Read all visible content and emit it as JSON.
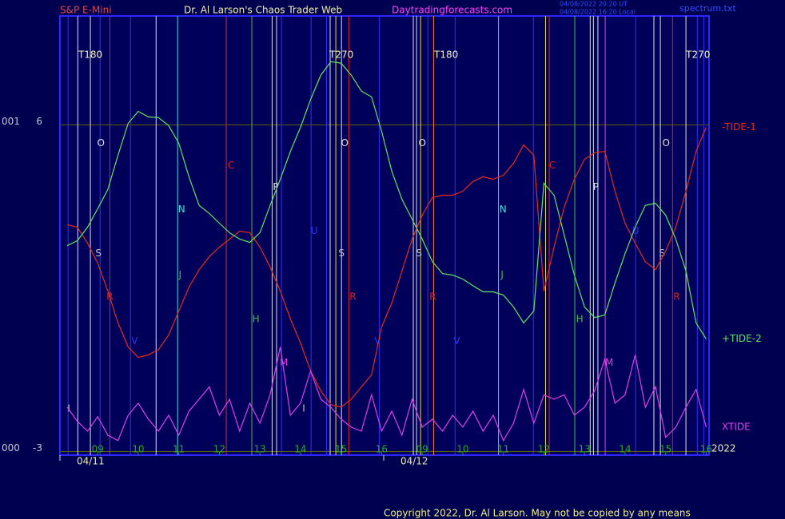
{
  "chart_data": {
    "type": "line",
    "instrument": "S&P E-Mini",
    "title": "Dr. Al Larson's Chaos Trader Web",
    "website": "Daytradingforecasts.com",
    "stamps": [
      "04/08/2022 20:20 UT",
      "04/08/2022 16:20 Local"
    ],
    "file": "spectrum.txt",
    "copyright": "Copyright 2022, Dr. Al Larson. May not be copied by any means",
    "year": "2022",
    "xlim": [
      -0.93,
      15.07
    ],
    "ylim": [
      -3.1,
      9.0
    ],
    "yticks": [
      -3,
      6
    ],
    "ytick_codes": [
      "000",
      "001"
    ],
    "grid": true,
    "xticks": [
      {
        "value": 0,
        "label": "09"
      },
      {
        "value": 1,
        "label": "10"
      },
      {
        "value": 2,
        "label": "11"
      },
      {
        "value": 3,
        "label": "12"
      },
      {
        "value": 4,
        "label": "13"
      },
      {
        "value": 5,
        "label": "14"
      },
      {
        "value": 6,
        "label": "15"
      },
      {
        "value": 7,
        "label": "16"
      },
      {
        "value": 8,
        "label": "09"
      },
      {
        "value": 9,
        "label": "10"
      },
      {
        "value": 10,
        "label": "11"
      },
      {
        "value": 11,
        "label": "12"
      },
      {
        "value": 12,
        "label": "13"
      },
      {
        "value": 13,
        "label": "14"
      },
      {
        "value": 14,
        "label": "15"
      },
      {
        "value": 15,
        "label": "16"
      }
    ],
    "dates": [
      {
        "text": "04/11",
        "x": -0.93
      },
      {
        "text": "04/12",
        "x": 7.05
      }
    ],
    "x": [
      -0.75,
      -0.5,
      -0.25,
      0,
      0.25,
      0.5,
      0.75,
      1,
      1.25,
      1.5,
      1.75,
      2,
      2.25,
      2.5,
      2.75,
      3,
      3.25,
      3.5,
      3.75,
      4,
      4.25,
      4.5,
      4.75,
      5,
      5.25,
      5.5,
      5.75,
      6,
      6.25,
      6.5,
      6.75,
      7,
      7.25,
      7.5,
      7.75,
      8,
      8.25,
      8.5,
      8.75,
      9,
      9.25,
      9.5,
      9.75,
      10,
      10.25,
      10.5,
      10.75,
      11,
      11.25,
      11.5,
      11.75,
      12,
      12.25,
      12.5,
      12.75,
      13,
      13.25,
      13.5,
      13.75,
      14,
      14.25,
      14.5,
      14.75,
      15
    ],
    "series": [
      {
        "name": "-TIDE-1",
        "color": "#e82a1a",
        "values": [
          3.25,
          3.18,
          2.74,
          2.19,
          1.42,
          0.54,
          -0.12,
          -0.41,
          -0.34,
          -0.19,
          0.21,
          0.87,
          1.53,
          2.01,
          2.37,
          2.63,
          2.85,
          3.07,
          3.03,
          2.63,
          2.08,
          1.42,
          0.65,
          -0.01,
          -0.78,
          -1.33,
          -1.71,
          -1.78,
          -1.56,
          -1.22,
          -0.89,
          0.43,
          1.09,
          1.97,
          2.85,
          3.51,
          4.0,
          4.06,
          4.06,
          4.17,
          4.44,
          4.57,
          4.5,
          4.61,
          4.94,
          5.45,
          5.16,
          1.42,
          2.63,
          3.73,
          4.5,
          5.05,
          5.23,
          5.27,
          4.17,
          3.29,
          2.74,
          2.23,
          2.01,
          2.52,
          3.18,
          4.17,
          5.27,
          5.93
        ]
      },
      {
        "name": "+TIDE-2",
        "color": "#5ee85e",
        "values": [
          2.67,
          2.81,
          3.18,
          3.69,
          4.22,
          5.16,
          6.04,
          6.37,
          6.22,
          6.2,
          5.98,
          5.49,
          4.57,
          3.78,
          3.56,
          3.29,
          3.03,
          2.85,
          2.76,
          3.03,
          3.78,
          4.5,
          5.27,
          5.93,
          6.7,
          7.37,
          7.74,
          7.7,
          7.37,
          6.93,
          6.77,
          5.82,
          4.72,
          3.95,
          3.4,
          2.85,
          2.23,
          1.9,
          1.86,
          1.75,
          1.57,
          1.4,
          1.4,
          1.31,
          0.98,
          0.54,
          0.87,
          4.39,
          4.06,
          2.96,
          1.86,
          0.98,
          0.69,
          0.76,
          1.64,
          2.45,
          3.18,
          3.78,
          3.84,
          3.51,
          2.85,
          1.97,
          0.54,
          0.1
        ]
      },
      {
        "name": "XTIDE",
        "color": "#e040e8",
        "values": [
          -1.78,
          -2.17,
          -2.44,
          -2.04,
          -2.55,
          -2.7,
          -2.0,
          -1.67,
          -2.11,
          -2.44,
          -2.0,
          -2.55,
          -1.89,
          -1.56,
          -1.22,
          -2.0,
          -1.56,
          -2.44,
          -1.67,
          -2.22,
          -1.44,
          -0.12,
          -2.0,
          -1.67,
          -0.78,
          -1.56,
          -1.78,
          -2.11,
          -2.33,
          -2.44,
          -1.44,
          -2.44,
          -1.89,
          -2.55,
          -1.56,
          -2.33,
          -2.11,
          -2.44,
          -2.0,
          -2.33,
          -1.89,
          -2.44,
          -2.0,
          -2.7,
          -2.22,
          -1.29,
          -2.22,
          -1.44,
          -1.56,
          -1.44,
          -2.0,
          -1.78,
          -1.33,
          -0.45,
          -1.67,
          -1.44,
          -0.34,
          -1.78,
          -1.22,
          -2.61,
          -2.33,
          -1.78,
          -1.29,
          -2.33
        ]
      }
    ],
    "vlines": [
      {
        "x": -0.73,
        "color": "#3030ff"
      },
      {
        "x": -0.49,
        "color": "#e0e0e0"
      },
      {
        "x": -0.18,
        "color": "#e0e0e0"
      },
      {
        "x": 0.06,
        "color": "#3030ff"
      },
      {
        "x": 0.3,
        "color": "#e02020"
      },
      {
        "x": 0.81,
        "color": "#3030ff"
      },
      {
        "x": 1.44,
        "color": "#e0e0e0"
      },
      {
        "x": 1.97,
        "color": "#40e0e0"
      },
      {
        "x": 3.17,
        "color": "#e02020"
      },
      {
        "x": 3.8,
        "color": "#40c040"
      },
      {
        "x": 4.3,
        "color": "#e0e0e0"
      },
      {
        "x": 4.41,
        "color": "#e0e0e0"
      },
      {
        "x": 4.53,
        "color": "#3030ff"
      },
      {
        "x": 5.26,
        "color": "#3030ff"
      },
      {
        "x": 5.64,
        "color": "#3030ff"
      },
      {
        "x": 5.73,
        "color": "#e0e0e0"
      },
      {
        "x": 5.87,
        "color": "#e0e040"
      },
      {
        "x": 6.01,
        "color": "#e0e0e0"
      },
      {
        "x": 6.19,
        "color": "#e02020"
      },
      {
        "x": 6.94,
        "color": "#3030ff"
      },
      {
        "x": 7.78,
        "color": "#e0e0e0"
      },
      {
        "x": 7.86,
        "color": "#e0e0e0"
      },
      {
        "x": 7.96,
        "color": "#e0e040"
      },
      {
        "x": 8.14,
        "color": "#3030ff"
      },
      {
        "x": 8.28,
        "color": "#ff8020"
      },
      {
        "x": 8.81,
        "color": "#3030ff"
      },
      {
        "x": 9.88,
        "color": "#40e0e0"
      },
      {
        "x": 10.74,
        "color": "#3030ff"
      },
      {
        "x": 11.04,
        "color": "#e0e040"
      },
      {
        "x": 11.13,
        "color": "#e02020"
      },
      {
        "x": 11.76,
        "color": "#40c040"
      },
      {
        "x": 12.14,
        "color": "#e0e0e0"
      },
      {
        "x": 12.22,
        "color": "#e0e0e0"
      },
      {
        "x": 12.33,
        "color": "#e0e0e0"
      },
      {
        "x": 12.51,
        "color": "#e040e0"
      },
      {
        "x": 13.26,
        "color": "#3030ff"
      },
      {
        "x": 13.71,
        "color": "#e0e0e0"
      },
      {
        "x": 13.87,
        "color": "#e0e0e0"
      },
      {
        "x": 14.17,
        "color": "#e02020"
      },
      {
        "x": 14.5,
        "color": "#e0e0e0"
      },
      {
        "x": 14.78,
        "color": "#3030ff"
      },
      {
        "x": 14.94,
        "color": "#3030ff"
      }
    ],
    "annotations": [
      {
        "text": "T180",
        "x": -0.18,
        "y": 7.92,
        "color": "#f0f0c0"
      },
      {
        "text": "T270",
        "x": 6.01,
        "y": 7.92,
        "color": "#f0f0c0"
      },
      {
        "text": "T180",
        "x": 8.59,
        "y": 7.92,
        "color": "#f0f0c0"
      },
      {
        "text": "T270",
        "x": 14.8,
        "y": 7.92,
        "color": "#f0f0c0"
      },
      {
        "text": "O",
        "x": 0.08,
        "y": 5.49,
        "color": "#e0e0e0"
      },
      {
        "text": "O",
        "x": 6.09,
        "y": 5.49,
        "color": "#e0e0e0"
      },
      {
        "text": "O",
        "x": 8.0,
        "y": 5.49,
        "color": "#e0e0e0"
      },
      {
        "text": "O",
        "x": 14.01,
        "y": 5.49,
        "color": "#e0e0e0"
      },
      {
        "text": "S",
        "x": 0.02,
        "y": 2.45,
        "color": "#c0c0c0"
      },
      {
        "text": "S",
        "x": 6.01,
        "y": 2.45,
        "color": "#c0c0c0"
      },
      {
        "text": "S",
        "x": 7.92,
        "y": 2.45,
        "color": "#c0c0c0"
      },
      {
        "text": "S",
        "x": 13.91,
        "y": 2.45,
        "color": "#c0c0c0"
      },
      {
        "text": "R",
        "x": 0.3,
        "y": 1.26,
        "color": "#e02020"
      },
      {
        "text": "R",
        "x": 6.29,
        "y": 1.26,
        "color": "#e02020"
      },
      {
        "text": "R",
        "x": 8.26,
        "y": 1.26,
        "color": "#e02020"
      },
      {
        "text": "R",
        "x": 14.27,
        "y": 1.26,
        "color": "#e02020"
      },
      {
        "text": "C",
        "x": 3.29,
        "y": 4.88,
        "color": "#e02020"
      },
      {
        "text": "C",
        "x": 11.21,
        "y": 4.88,
        "color": "#e02020"
      },
      {
        "text": "P",
        "x": 4.39,
        "y": 4.28,
        "color": "#e0e0e0"
      },
      {
        "text": "P",
        "x": 12.28,
        "y": 4.28,
        "color": "#e0e0e0"
      },
      {
        "text": "N",
        "x": 2.07,
        "y": 3.67,
        "color": "#40e0e0"
      },
      {
        "text": "N",
        "x": 9.99,
        "y": 3.67,
        "color": "#40e0e0"
      },
      {
        "text": "U",
        "x": 5.34,
        "y": 3.07,
        "color": "#3030ff"
      },
      {
        "text": "U",
        "x": 13.26,
        "y": 3.07,
        "color": "#3030ff"
      },
      {
        "text": "J",
        "x": 2.03,
        "y": 1.86,
        "color": "#40c040"
      },
      {
        "text": "J",
        "x": 9.97,
        "y": 1.86,
        "color": "#40c040"
      },
      {
        "text": "H",
        "x": 3.9,
        "y": 0.64,
        "color": "#40c040"
      },
      {
        "text": "H",
        "x": 11.88,
        "y": 0.64,
        "color": "#40c040"
      },
      {
        "text": "V",
        "x": 0.91,
        "y": 0.03,
        "color": "#3030ff"
      },
      {
        "text": "V",
        "x": 6.9,
        "y": 0.03,
        "color": "#3030ff"
      },
      {
        "text": "V",
        "x": 8.85,
        "y": 0.03,
        "color": "#3030ff"
      },
      {
        "text": "M",
        "x": 4.59,
        "y": -0.56,
        "color": "#e040e0"
      },
      {
        "text": "M",
        "x": 12.61,
        "y": -0.56,
        "color": "#e040e0"
      },
      {
        "text": "I",
        "x": -0.71,
        "y": -1.82,
        "color": "#c0c0c0"
      },
      {
        "text": "I",
        "x": 5.08,
        "y": -1.82,
        "color": "#c0c0c0"
      },
      {
        "text": "I",
        "x": 12.14,
        "y": -1.82,
        "color": "#c0c0c0"
      }
    ]
  }
}
